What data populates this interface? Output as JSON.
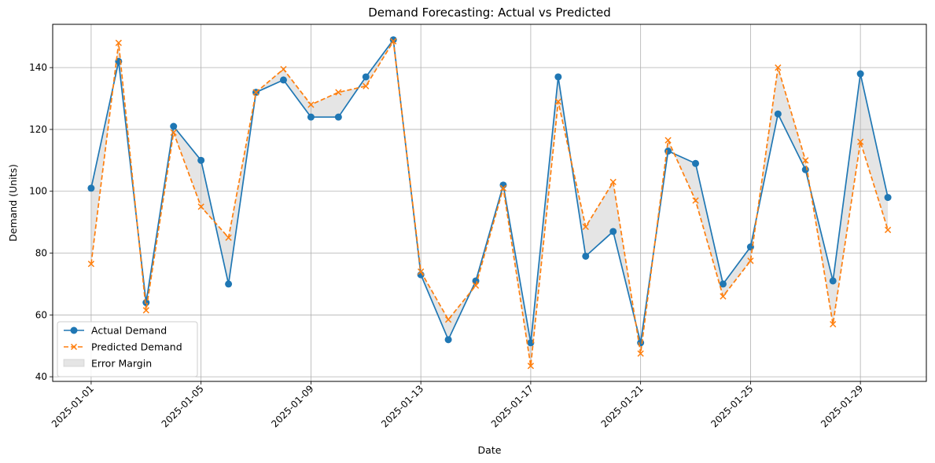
{
  "chart_data": {
    "type": "line",
    "title": "Demand Forecasting: Actual vs Predicted",
    "xlabel": "Date",
    "ylabel": "Demand (Units)",
    "x": [
      "2025-01-01",
      "2025-01-02",
      "2025-01-03",
      "2025-01-04",
      "2025-01-05",
      "2025-01-06",
      "2025-01-07",
      "2025-01-08",
      "2025-01-09",
      "2025-01-10",
      "2025-01-11",
      "2025-01-12",
      "2025-01-13",
      "2025-01-14",
      "2025-01-15",
      "2025-01-16",
      "2025-01-17",
      "2025-01-18",
      "2025-01-19",
      "2025-01-20",
      "2025-01-21",
      "2025-01-22",
      "2025-01-23",
      "2025-01-24",
      "2025-01-25",
      "2025-01-26",
      "2025-01-27",
      "2025-01-28",
      "2025-01-29",
      "2025-01-30"
    ],
    "x_ticks": [
      "2025-01-01",
      "2025-01-05",
      "2025-01-09",
      "2025-01-13",
      "2025-01-17",
      "2025-01-21",
      "2025-01-25",
      "2025-01-29"
    ],
    "y_ticks": [
      40,
      60,
      80,
      100,
      120,
      140
    ],
    "ylim": [
      38.5,
      154
    ],
    "xlim": [
      "2024-12-30T14:24",
      "2025-01-31T09:36"
    ],
    "grid": true,
    "legend_position": "lower-left",
    "series": [
      {
        "name": "Actual Demand",
        "color": "#1f77b4",
        "marker": "circle",
        "linestyle": "solid",
        "values": [
          101,
          142,
          64,
          121,
          110,
          70,
          132,
          136,
          124,
          124,
          137,
          149,
          73,
          52,
          71,
          102,
          51,
          137,
          79,
          87,
          51,
          113,
          109,
          70,
          82,
          125,
          107,
          71,
          138,
          98
        ]
      },
      {
        "name": "Predicted Demand",
        "color": "#ff7f0e",
        "marker": "x",
        "linestyle": "dashed",
        "values": [
          76.5,
          148,
          61.5,
          119,
          95,
          85,
          132,
          139.5,
          128,
          132,
          134,
          148.5,
          74,
          58.5,
          69.5,
          101,
          43.5,
          129,
          88.5,
          103,
          47.5,
          116.5,
          97,
          66,
          77.5,
          140,
          110,
          57,
          116,
          87.5
        ]
      }
    ],
    "fill_between": {
      "name": "Error Margin",
      "color": "#bfbfbf"
    }
  }
}
